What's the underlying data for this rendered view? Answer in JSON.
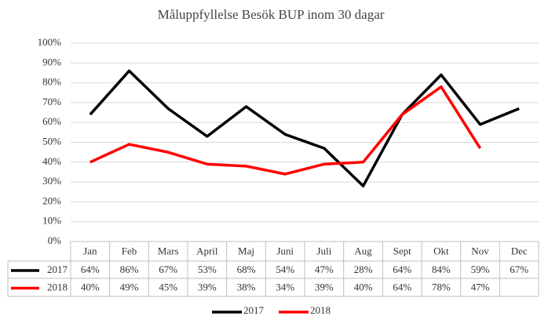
{
  "chart_data": {
    "type": "line",
    "title": "Måluppfyllelse Besök BUP inom 30 dagar",
    "categories": [
      "Jan",
      "Feb",
      "Mars",
      "April",
      "Maj",
      "Juni",
      "Juli",
      "Aug",
      "Sept",
      "Okt",
      "Nov",
      "Dec"
    ],
    "series": [
      {
        "name": "2017",
        "color": "#000000",
        "values": [
          64,
          86,
          67,
          53,
          68,
          54,
          47,
          28,
          64,
          84,
          59,
          67
        ],
        "value_labels": [
          "64%",
          "86%",
          "67%",
          "53%",
          "68%",
          "54%",
          "47%",
          "28%",
          "64%",
          "84%",
          "59%",
          "67%"
        ]
      },
      {
        "name": "2018",
        "color": "#ff0000",
        "values": [
          40,
          49,
          45,
          39,
          38,
          34,
          39,
          40,
          64,
          78,
          47,
          null
        ],
        "value_labels": [
          "40%",
          "49%",
          "45%",
          "39%",
          "38%",
          "34%",
          "39%",
          "40%",
          "64%",
          "78%",
          "47%",
          null
        ]
      }
    ],
    "ylim": [
      0,
      100
    ],
    "yticks": [
      {
        "value": 0,
        "label": "0%"
      },
      {
        "value": 10,
        "label": "10%"
      },
      {
        "value": 20,
        "label": "20%"
      },
      {
        "value": 30,
        "label": "30%"
      },
      {
        "value": 40,
        "label": "40%"
      },
      {
        "value": 50,
        "label": "50%"
      },
      {
        "value": 60,
        "label": "60%"
      },
      {
        "value": 70,
        "label": "70%"
      },
      {
        "value": 80,
        "label": "80%"
      },
      {
        "value": 90,
        "label": "90%"
      },
      {
        "value": 100,
        "label": "100%"
      }
    ],
    "grid": true,
    "legend": "bottom"
  }
}
